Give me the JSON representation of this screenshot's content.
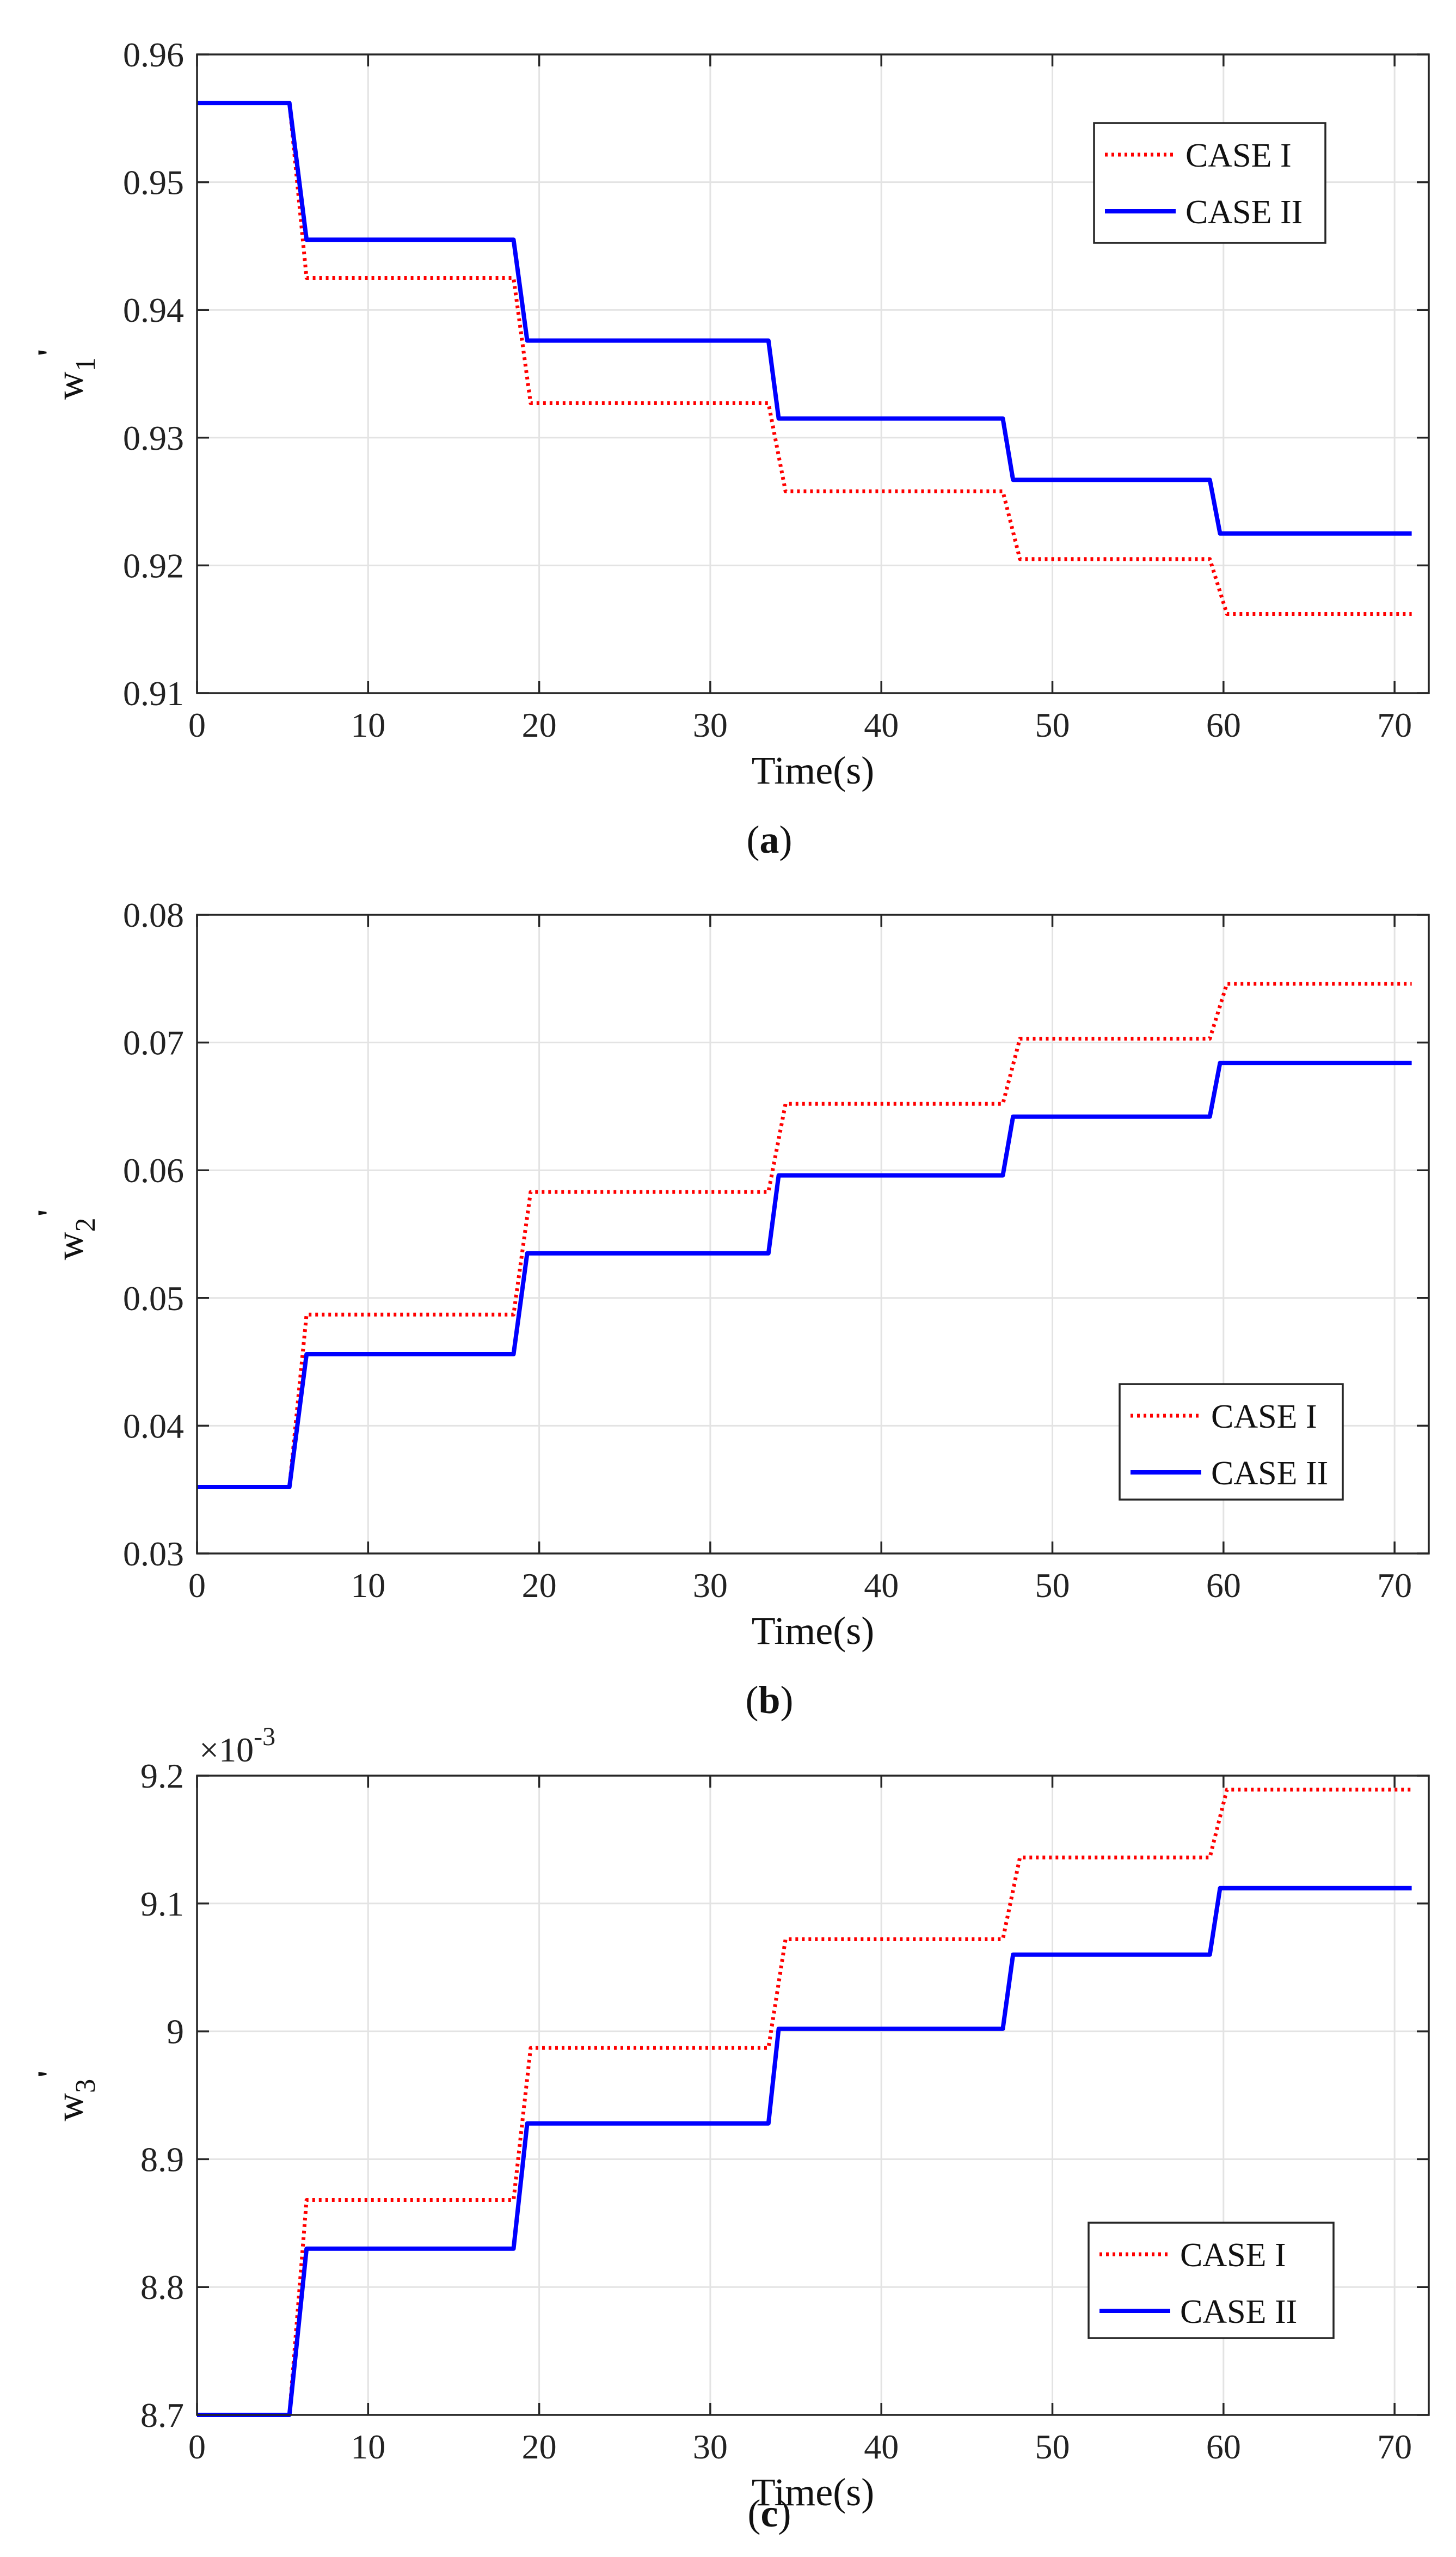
{
  "colors": {
    "case1": "#ff0000",
    "case2": "#0000ff"
  },
  "chart_data": [
    {
      "type": "line",
      "panel_label": "a",
      "xlabel": "Time(s)",
      "ylabel": "w",
      "ylabel_sub": "1",
      "ylabel_sup": "'",
      "xlim": [
        0,
        72
      ],
      "ylim": [
        0.91,
        0.96
      ],
      "xticks": [
        "0",
        "10",
        "20",
        "30",
        "40",
        "50",
        "60",
        "70"
      ],
      "yticks": [
        "0.91",
        "0.92",
        "0.93",
        "0.94",
        "0.95",
        "0.96"
      ],
      "exponent": "",
      "legend_position": "top-right",
      "series": [
        {
          "name": "CASE I",
          "style": "dotted",
          "x": [
            0,
            5.4,
            6.4,
            18.5,
            19.5,
            33.4,
            34.4,
            47.1,
            48.1,
            59.2,
            60.2,
            71
          ],
          "y": [
            0.9562,
            0.9562,
            0.9425,
            0.9425,
            0.9327,
            0.9327,
            0.9258,
            0.9258,
            0.9205,
            0.9205,
            0.9162,
            0.9162
          ]
        },
        {
          "name": "CASE II",
          "style": "solid",
          "x": [
            0,
            5.4,
            6.4,
            18.5,
            19.3,
            33.4,
            34.0,
            47.1,
            47.7,
            59.2,
            59.8,
            71
          ],
          "y": [
            0.9562,
            0.9562,
            0.9455,
            0.9455,
            0.9376,
            0.9376,
            0.9315,
            0.9315,
            0.9267,
            0.9267,
            0.9225,
            0.9225
          ]
        }
      ]
    },
    {
      "type": "line",
      "panel_label": "b",
      "xlabel": "Time(s)",
      "ylabel": "w",
      "ylabel_sub": "2",
      "ylabel_sup": "'",
      "xlim": [
        0,
        72
      ],
      "ylim": [
        0.03,
        0.08
      ],
      "xticks": [
        "0",
        "10",
        "20",
        "30",
        "40",
        "50",
        "60",
        "70"
      ],
      "yticks": [
        "0.03",
        "0.04",
        "0.05",
        "0.06",
        "0.07",
        "0.08"
      ],
      "exponent": "",
      "legend_position": "bottom-right",
      "series": [
        {
          "name": "CASE I",
          "style": "dotted",
          "x": [
            0,
            5.4,
            6.4,
            18.5,
            19.5,
            33.4,
            34.4,
            47.1,
            48.1,
            59.2,
            60.2,
            71
          ],
          "y": [
            0.0352,
            0.0352,
            0.0487,
            0.0487,
            0.0583,
            0.0583,
            0.0652,
            0.0652,
            0.0703,
            0.0703,
            0.0746,
            0.0746
          ]
        },
        {
          "name": "CASE II",
          "style": "solid",
          "x": [
            0,
            5.4,
            6.4,
            18.5,
            19.3,
            33.4,
            34.0,
            47.1,
            47.7,
            59.2,
            59.8,
            71
          ],
          "y": [
            0.0352,
            0.0352,
            0.0456,
            0.0456,
            0.0535,
            0.0535,
            0.0596,
            0.0596,
            0.0642,
            0.0642,
            0.0684,
            0.0684
          ]
        }
      ]
    },
    {
      "type": "line",
      "panel_label": "c",
      "xlabel": "Time(s)",
      "ylabel": "w",
      "ylabel_sub": "3",
      "ylabel_sup": "'",
      "xlim": [
        0,
        72
      ],
      "ylim": [
        8.7,
        9.2
      ],
      "xticks": [
        "0",
        "10",
        "20",
        "30",
        "40",
        "50",
        "60",
        "70"
      ],
      "yticks": [
        "8.7",
        "8.8",
        "8.9",
        "9",
        "9.1",
        "9.2"
      ],
      "exponent": "×10",
      "exponent_power": "-3",
      "legend_position": "bottom-right",
      "series": [
        {
          "name": "CASE I",
          "style": "dotted",
          "x": [
            0,
            5.4,
            6.4,
            18.5,
            19.5,
            33.4,
            34.4,
            47.1,
            48.1,
            59.2,
            60.2,
            71
          ],
          "y": [
            8.7,
            8.7,
            8.868,
            8.868,
            8.987,
            8.987,
            9.072,
            9.072,
            9.136,
            9.136,
            9.189,
            9.189
          ]
        },
        {
          "name": "CASE II",
          "style": "solid",
          "x": [
            0,
            5.4,
            6.4,
            18.5,
            19.3,
            33.4,
            34.0,
            47.1,
            47.7,
            59.2,
            59.8,
            71
          ],
          "y": [
            8.7,
            8.7,
            8.83,
            8.83,
            8.928,
            8.928,
            9.002,
            9.002,
            9.06,
            9.06,
            9.112,
            9.112
          ]
        }
      ]
    }
  ]
}
